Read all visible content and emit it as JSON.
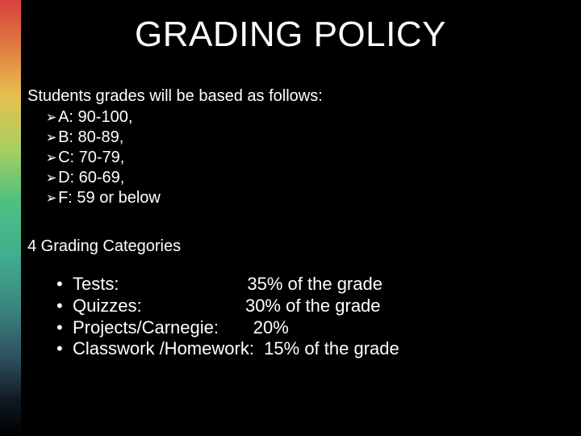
{
  "title": "GRADING POLICY",
  "intro": "Students grades will be based as follows:",
  "grade_scale": [
    {
      "text": "A: 90-100,"
    },
    {
      "text": "B: 80-89,"
    },
    {
      "text": "C: 70-79,"
    },
    {
      "text": "D: 60-69,"
    },
    {
      "text": "F: 59 or below"
    }
  ],
  "categories_heading": "4 Grading Categories",
  "categories": [
    {
      "label": "Tests:",
      "spacer": "                          ",
      "value": "35% of the grade"
    },
    {
      "label": "Quizzes:",
      "spacer": "                     ",
      "value": "30% of the grade"
    },
    {
      "label": "Projects/Carnegie:",
      "spacer": "       ",
      "value": "20%"
    },
    {
      "label": "Classwork /Homework:",
      "spacer": "  ",
      "value": "15% of the grade"
    }
  ],
  "colors": {
    "background": "#000000",
    "text": "#ffffff"
  },
  "arrow_glyph": "➢",
  "bullet_glyph": "•"
}
